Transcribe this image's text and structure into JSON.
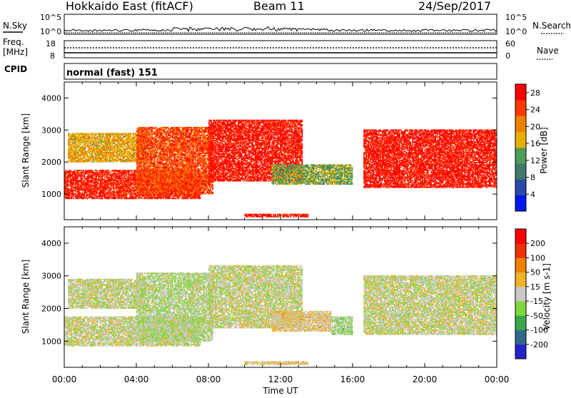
{
  "header": {
    "station": "Hokkaido East (fitACF)",
    "beam": "Beam 11",
    "date": "24/Sep/2017"
  },
  "summary": {
    "nsky_label": "N.Sky",
    "nsky_ticks": [
      "10^5",
      "10^0"
    ],
    "nsearch_label": "N.Search",
    "freq_label": "Freq.",
    "freq_unit": "[MHz]",
    "freq_ticks": [
      "18",
      "8"
    ],
    "nave_label": "Nave",
    "nave_ticks": [
      "60",
      "0"
    ],
    "cpid_label": "CPID",
    "cpid_text": "normal (fast) 151"
  },
  "time_axis": {
    "labels": [
      "00:00",
      "04:00",
      "08:00",
      "12:00",
      "16:00",
      "20:00",
      "00:00"
    ],
    "title": "Time UT"
  },
  "chart_data": [
    {
      "type": "heatmap",
      "name": "power-panel",
      "ylabel": "Slant Range [km]",
      "yticks": [
        "1000",
        "2000",
        "3000",
        "4000"
      ],
      "ylim": [
        200,
        4500
      ],
      "xlim": [
        0,
        24
      ],
      "colorbar": {
        "label": "Power [dB]",
        "ticks": [
          "4",
          "8",
          "12",
          "16",
          "20",
          "24",
          "28"
        ],
        "range": [
          0,
          30
        ],
        "colors": [
          "#0018f0",
          "#2a48a8",
          "#3f7a6a",
          "#4e9b5a",
          "#e8b000",
          "#f08000",
          "#ff3a00",
          "#ff0000"
        ]
      },
      "regions": [
        {
          "t0": 0,
          "t1": 7.5,
          "r0": 850,
          "r1": 1750,
          "value": 26
        },
        {
          "t0": 0.2,
          "t1": 4.5,
          "r0": 2000,
          "r1": 2900,
          "value": 18
        },
        {
          "t0": 4.0,
          "t1": 8.2,
          "r0": 1000,
          "r1": 3100,
          "value": 24
        },
        {
          "t0": 8.0,
          "t1": 13.2,
          "r0": 1400,
          "r1": 3300,
          "value": 27
        },
        {
          "t0": 11.5,
          "t1": 16.0,
          "r0": 1300,
          "r1": 1900,
          "value": 14
        },
        {
          "t0": 16.6,
          "t1": 24,
          "r0": 1200,
          "r1": 3000,
          "value": 27
        },
        {
          "t0": 10.0,
          "t1": 13.5,
          "r0": 280,
          "r1": 360,
          "value": 27
        }
      ]
    },
    {
      "type": "heatmap",
      "name": "velocity-panel",
      "ylabel": "Slant Range [km]",
      "yticks": [
        "1000",
        "2000",
        "3000",
        "4000"
      ],
      "ylim": [
        200,
        4500
      ],
      "xlim": [
        0,
        24
      ],
      "colorbar": {
        "label": "Velocity [m s-1]",
        "ticks": [
          "200",
          "100",
          "50",
          "15",
          "-15",
          "-50",
          "-100",
          "-200"
        ],
        "range": [
          -250,
          250
        ],
        "colors": [
          "#2323c8",
          "#2f6a8a",
          "#3aa84a",
          "#7fd83a",
          "#c8c8c8",
          "#f0b428",
          "#f08000",
          "#f03000",
          "#ff0000"
        ]
      },
      "regions": [
        {
          "t0": 0,
          "t1": 7.5,
          "r0": 850,
          "r1": 1750,
          "value": 0
        },
        {
          "t0": 0.2,
          "t1": 4.5,
          "r0": 2000,
          "r1": 2900,
          "value": 0
        },
        {
          "t0": 4.0,
          "t1": 8.2,
          "r0": 1000,
          "r1": 3100,
          "value": -20
        },
        {
          "t0": 8.0,
          "t1": 13.2,
          "r0": 1400,
          "r1": 3300,
          "value": 0
        },
        {
          "t0": 11.5,
          "t1": 14.8,
          "r0": 1300,
          "r1": 1900,
          "value": 30
        },
        {
          "t0": 14.8,
          "t1": 16.0,
          "r0": 1200,
          "r1": 1750,
          "value": -30
        },
        {
          "t0": 16.6,
          "t1": 24,
          "r0": 1200,
          "r1": 3000,
          "value": 0
        },
        {
          "t0": 10.0,
          "t1": 13.5,
          "r0": 280,
          "r1": 360,
          "value": 30
        }
      ]
    }
  ]
}
